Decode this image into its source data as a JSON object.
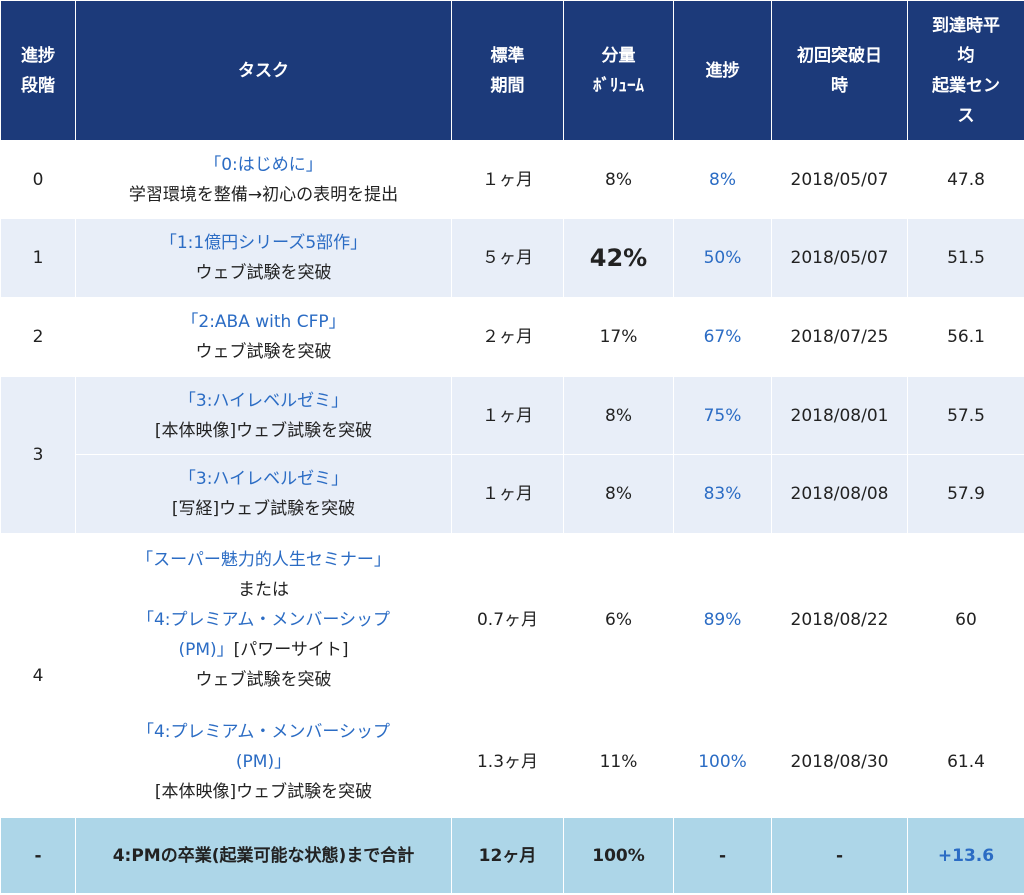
{
  "headers": {
    "stage": [
      "進捗",
      "段階"
    ],
    "task": "タスク",
    "period": [
      "標準",
      "期間"
    ],
    "volume": [
      "分量",
      "ﾎﾞﾘｭｰﾑ"
    ],
    "progress": "進捗",
    "first_date": [
      "初回突破日",
      "時"
    ],
    "sense": [
      "到達時平",
      "均",
      "起業セン",
      "ス"
    ]
  },
  "rows": [
    {
      "stage": "0",
      "task_link": "「0:はじめに」",
      "task_text": "学習環境を整備→初心の表明を提出",
      "period": "１ヶ月",
      "volume": "8%",
      "progress": "8%",
      "date": "2018/05/07",
      "sense": "47.8"
    },
    {
      "stage": "1",
      "task_link": "「1:1億円シリーズ5部作」",
      "task_text": "ウェブ試験を突破",
      "period": "５ヶ月",
      "volume": "42%",
      "progress": "50%",
      "date": "2018/05/07",
      "sense": "51.5"
    },
    {
      "stage": "2",
      "task_link": "「2:ABA with CFP」",
      "task_text": "ウェブ試験を突破",
      "period": "２ヶ月",
      "volume": "17%",
      "progress": "67%",
      "date": "2018/07/25",
      "sense": "56.1"
    },
    {
      "stage": "3",
      "task_link": "「3:ハイレベルゼミ」",
      "task_text": "[本体映像]ウェブ試験を突破",
      "period": "１ヶ月",
      "volume": "8%",
      "progress": "75%",
      "date": "2018/08/01",
      "sense": "57.5"
    },
    {
      "task_link": "「3:ハイレベルゼミ」",
      "task_text": "[写経]ウェブ試験を突破",
      "period": "１ヶ月",
      "volume": "8%",
      "progress": "83%",
      "date": "2018/08/08",
      "sense": "57.9"
    },
    {
      "stage": "4",
      "task_link1": "「スーパー魅力的人生セミナー」",
      "task_mid": "または",
      "task_link2a": "「4:プレミアム・メンバーシップ",
      "task_link2b": "(PM)」",
      "task_after": "[パワーサイト]",
      "task_text": "ウェブ試験を突破",
      "period": "0.7ヶ月",
      "volume": "6%",
      "progress": "89%",
      "date": "2018/08/22",
      "sense": "60"
    },
    {
      "task_link_a": "「4:プレミアム・メンバーシップ",
      "task_link_b": "(PM)」",
      "task_text": "[本体映像]ウェブ試験を突破",
      "period": "1.3ヶ月",
      "volume": "11%",
      "progress": "100%",
      "date": "2018/08/30",
      "sense": "61.4"
    }
  ],
  "total": {
    "stage": "-",
    "task": "4:PMの卒業(起業可能な状態)まで合計",
    "period": "12ヶ月",
    "volume": "100%",
    "progress": "-",
    "date": "-",
    "sense": "+13.6"
  }
}
